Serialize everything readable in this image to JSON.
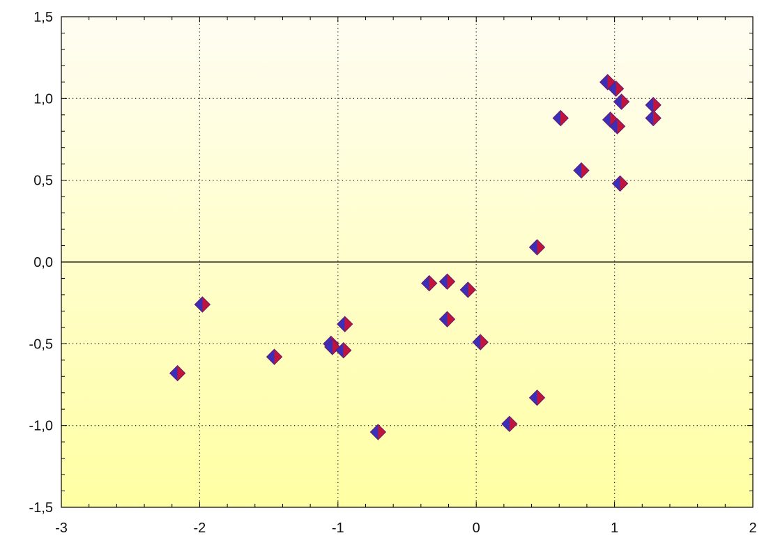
{
  "chart_data": {
    "type": "scatter",
    "title": "",
    "xlabel": "",
    "ylabel": "",
    "xlim": [
      -3,
      2
    ],
    "ylim": [
      -1.5,
      1.5
    ],
    "x_ticks": [
      -3,
      -2,
      -1,
      0,
      1,
      2
    ],
    "y_ticks": [
      -1.5,
      -1.0,
      -0.5,
      0.0,
      0.5,
      1.0,
      1.5
    ],
    "x_tick_labels": [
      "-3",
      "-2",
      "-1",
      "0",
      "1",
      "2"
    ],
    "y_tick_labels": [
      "-1,5",
      "-1,0",
      "-0,5",
      "0,0",
      "0,5",
      "1,0",
      "1,5"
    ],
    "grid": true,
    "grid_style": "dotted",
    "legend": "none",
    "marker": "diamond",
    "colors": {
      "background_top": "#fffdf2",
      "background_bottom": "#ffffa3",
      "marker_fill_left": "#3a2fb8",
      "marker_fill_right": "#c0143c",
      "marker_stroke": "#6a1a6a",
      "grid": "#333333",
      "axis": "#000000"
    },
    "series": [
      {
        "points": [
          [
            0.95,
            1.1
          ],
          [
            1.01,
            1.06
          ],
          [
            1.05,
            0.98
          ],
          [
            1.28,
            0.96
          ],
          [
            0.61,
            0.88
          ],
          [
            0.97,
            0.87
          ],
          [
            1.28,
            0.88
          ],
          [
            1.02,
            0.83
          ],
          [
            0.76,
            0.56
          ],
          [
            1.04,
            0.48
          ],
          [
            0.44,
            0.09
          ],
          [
            -0.34,
            -0.13
          ],
          [
            -0.21,
            -0.12
          ],
          [
            -0.06,
            -0.17
          ],
          [
            -1.98,
            -0.26
          ],
          [
            -0.95,
            -0.38
          ],
          [
            -0.21,
            -0.35
          ],
          [
            -1.05,
            -0.5
          ],
          [
            -1.04,
            -0.52
          ],
          [
            -0.96,
            -0.54
          ],
          [
            0.03,
            -0.49
          ],
          [
            -1.46,
            -0.58
          ],
          [
            -2.16,
            -0.68
          ],
          [
            0.44,
            -0.83
          ],
          [
            0.24,
            -0.99
          ],
          [
            -0.71,
            -1.04
          ]
        ]
      }
    ]
  }
}
